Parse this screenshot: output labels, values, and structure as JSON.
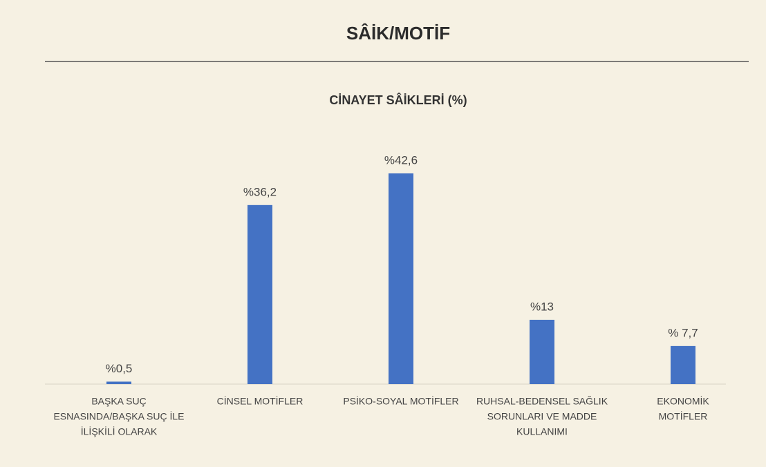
{
  "page_title": "SÂİK/MOTİF",
  "chart_data": {
    "type": "bar",
    "title": "CİNAYET SÂİKLERİ (%)",
    "categories": [
      [
        "BAŞKA SUÇ",
        "ESNASINDA/BAŞKA SUÇ İLE",
        "İLİŞKİLİ OLARAK"
      ],
      [
        "CİNSEL MOTİFLER"
      ],
      [
        "PSİKO-SOYAL MOTİFLER"
      ],
      [
        "RUHSAL-BEDENSEL SAĞLIK",
        "SORUNLARI VE MADDE",
        "KULLANIMI"
      ],
      [
        "EKONOMİK",
        "MOTİFLER"
      ]
    ],
    "values": [
      0.5,
      36.2,
      42.6,
      13,
      7.7
    ],
    "value_labels": [
      "%0,5",
      "%36,2",
      "%42,6",
      "%13",
      "% 7,7"
    ],
    "color": "#4472c4"
  }
}
